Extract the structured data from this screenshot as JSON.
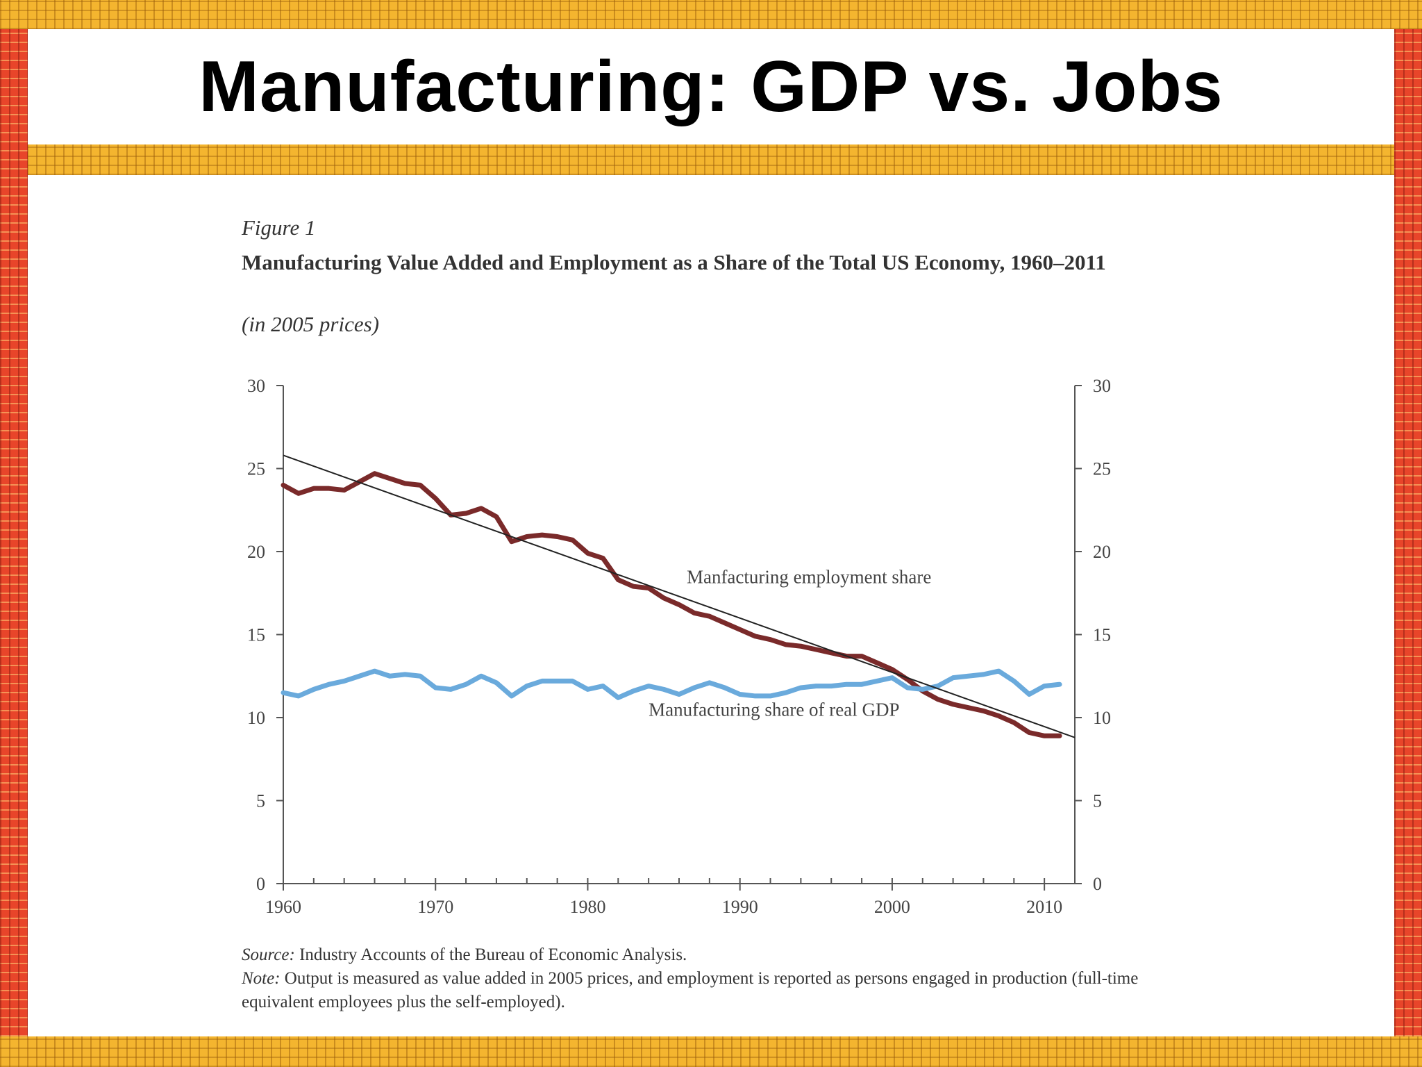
{
  "slide": {
    "title": "Manufacturing: GDP vs. Jobs"
  },
  "figure": {
    "label": "Figure 1",
    "title": "Manufacturing Value Added and Employment as a Share of the Total US Economy, 1960–2011",
    "subtitle": "(in 2005 prices)",
    "source_label": "Source:",
    "source_text": "Industry Accounts of the Bureau of Economic Analysis.",
    "note_label": "Note:",
    "note_text": "Output is measured as value added in 2005 prices, and employment is reported as persons engaged in production (full-time equivalent employees plus the self-employed)."
  },
  "chart_data": {
    "type": "line",
    "title": "Manufacturing Value Added and Employment as a Share of the Total US Economy, 1960–2011",
    "xlabel": "",
    "ylabel": "",
    "xlim": [
      1960,
      2012
    ],
    "ylim": [
      0,
      30
    ],
    "x_ticks": [
      1960,
      1970,
      1980,
      1990,
      2000,
      2010
    ],
    "y_ticks": [
      0,
      5,
      10,
      15,
      20,
      25,
      30
    ],
    "grid": false,
    "legend": "inline annotations",
    "x": [
      1960,
      1961,
      1962,
      1963,
      1964,
      1965,
      1966,
      1967,
      1968,
      1969,
      1970,
      1971,
      1972,
      1973,
      1974,
      1975,
      1976,
      1977,
      1978,
      1979,
      1980,
      1981,
      1982,
      1983,
      1984,
      1985,
      1986,
      1987,
      1988,
      1989,
      1990,
      1991,
      1992,
      1993,
      1994,
      1995,
      1996,
      1997,
      1998,
      1999,
      2000,
      2001,
      2002,
      2003,
      2004,
      2005,
      2006,
      2007,
      2008,
      2009,
      2010,
      2011
    ],
    "series": [
      {
        "name": "Manfacturing employment share",
        "color": "#7a2a2a",
        "values": [
          24.0,
          23.5,
          23.8,
          23.8,
          23.7,
          24.2,
          24.7,
          24.4,
          24.1,
          24.0,
          23.2,
          22.2,
          22.3,
          22.6,
          22.1,
          20.6,
          20.9,
          21.0,
          20.9,
          20.7,
          19.9,
          19.6,
          18.3,
          17.9,
          17.8,
          17.2,
          16.8,
          16.3,
          16.1,
          15.7,
          15.3,
          14.9,
          14.7,
          14.4,
          14.3,
          14.1,
          13.9,
          13.7,
          13.7,
          13.3,
          12.9,
          12.3,
          11.6,
          11.1,
          10.8,
          10.6,
          10.4,
          10.1,
          9.7,
          9.1,
          8.9,
          8.9
        ]
      },
      {
        "name": "Manufacturing share of real GDP",
        "color": "#6aaadc",
        "values": [
          11.5,
          11.3,
          11.7,
          12.0,
          12.2,
          12.5,
          12.8,
          12.5,
          12.6,
          12.5,
          11.8,
          11.7,
          12.0,
          12.5,
          12.1,
          11.3,
          11.9,
          12.2,
          12.2,
          12.2,
          11.7,
          11.9,
          11.2,
          11.6,
          11.9,
          11.7,
          11.4,
          11.8,
          12.1,
          11.8,
          11.4,
          11.3,
          11.3,
          11.5,
          11.8,
          11.9,
          11.9,
          12.0,
          12.0,
          12.2,
          12.4,
          11.8,
          11.7,
          11.9,
          12.4,
          12.5,
          12.6,
          12.8,
          12.2,
          11.4,
          11.9,
          12.0
        ]
      }
    ],
    "trend_line": {
      "color": "#222222",
      "from": [
        1960,
        25.8
      ],
      "to": [
        2012,
        8.8
      ]
    },
    "annotations": [
      {
        "text": "Manfacturing employment share",
        "x": 1986.5,
        "y": 18.1
      },
      {
        "text": "Manufacturing share of real GDP",
        "x": 1984,
        "y": 10.1
      }
    ]
  }
}
